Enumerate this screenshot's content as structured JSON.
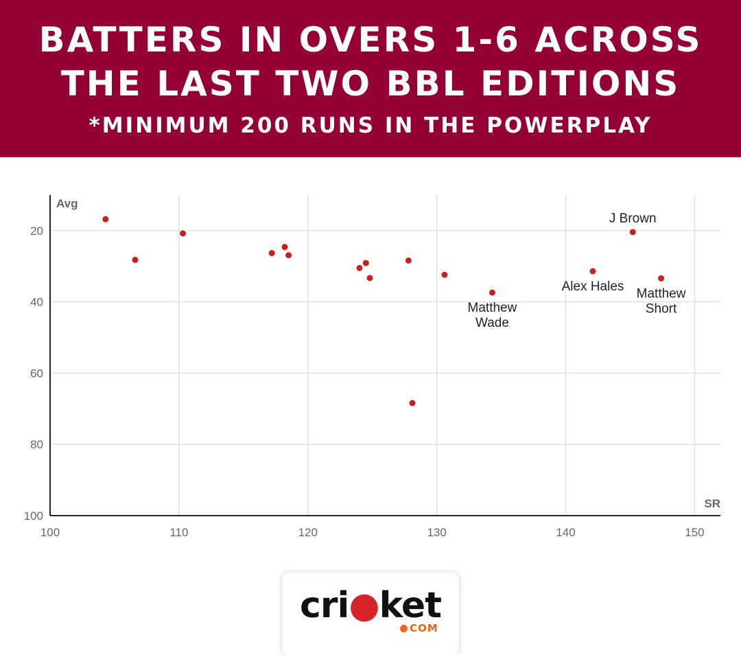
{
  "header": {
    "title_line1": "BATTERS IN OVERS 1-6 ACROSS",
    "title_line2": "THE LAST TWO BBL EDITIONS",
    "subtitle": "*MINIMUM 200 RUNS IN THE POWERPLAY"
  },
  "colors": {
    "banner": "#940033",
    "point": "#cc1f1f",
    "grid": "#e0e0e0"
  },
  "chart_data": {
    "type": "scatter",
    "title": "BATTERS IN OVERS 1-6 ACROSS THE LAST TWO BBL EDITIONS",
    "subtitle": "*MINIMUM 200 RUNS IN THE POWERPLAY",
    "xlabel": "SR",
    "ylabel": "Avg",
    "xlim": [
      100,
      152
    ],
    "ylim": [
      100,
      10
    ],
    "y_inverted": true,
    "grid": true,
    "x_ticks": [
      100,
      110,
      120,
      130,
      140,
      150
    ],
    "y_ticks": [
      20,
      40,
      60,
      80,
      100
    ],
    "points": [
      {
        "x": 104.3,
        "y": 16.8,
        "label": ""
      },
      {
        "x": 106.6,
        "y": 28.2,
        "label": ""
      },
      {
        "x": 110.3,
        "y": 20.8,
        "label": ""
      },
      {
        "x": 117.2,
        "y": 26.3,
        "label": ""
      },
      {
        "x": 118.2,
        "y": 24.6,
        "label": ""
      },
      {
        "x": 118.5,
        "y": 26.9,
        "label": ""
      },
      {
        "x": 124.0,
        "y": 30.5,
        "label": ""
      },
      {
        "x": 124.5,
        "y": 29.1,
        "label": ""
      },
      {
        "x": 124.8,
        "y": 33.3,
        "label": ""
      },
      {
        "x": 127.8,
        "y": 28.4,
        "label": ""
      },
      {
        "x": 128.1,
        "y": 68.4,
        "label": ""
      },
      {
        "x": 130.6,
        "y": 32.4,
        "label": ""
      },
      {
        "x": 134.3,
        "y": 37.4,
        "label": "Matthew Wade",
        "label_lines": [
          "Matthew",
          "Wade"
        ],
        "label_pos": "below"
      },
      {
        "x": 142.1,
        "y": 31.4,
        "label": "Alex Hales",
        "label_lines": [
          "Alex Hales"
        ],
        "label_pos": "below"
      },
      {
        "x": 145.2,
        "y": 20.4,
        "label": "J Brown",
        "label_lines": [
          "J Brown"
        ],
        "label_pos": "above"
      },
      {
        "x": 147.4,
        "y": 33.4,
        "label": "Matthew Short",
        "label_lines": [
          "Matthew",
          "Short"
        ],
        "label_pos": "below"
      }
    ]
  },
  "logo": {
    "word_left": "cri",
    "word_ball": "●",
    "word_right": "ket",
    "suffix": "COM",
    "icon": "cricket-ball-icon"
  }
}
